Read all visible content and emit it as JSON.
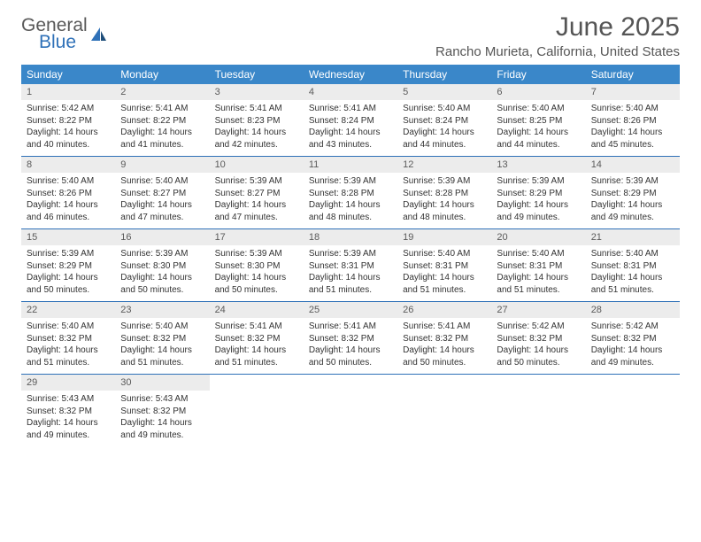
{
  "brand": {
    "name1": "General",
    "name2": "Blue"
  },
  "title": "June 2025",
  "location": "Rancho Murieta, California, United States",
  "colors": {
    "header_bg": "#3a87c9",
    "header_text": "#ffffff",
    "daynum_bg": "#ececec",
    "rule": "#2f71b8",
    "brand_gray": "#595959",
    "brand_blue": "#2f71b8"
  },
  "dayNames": [
    "Sunday",
    "Monday",
    "Tuesday",
    "Wednesday",
    "Thursday",
    "Friday",
    "Saturday"
  ],
  "weeks": [
    [
      {
        "d": "1",
        "sr": "5:42 AM",
        "ss": "8:22 PM",
        "dl": "14 hours and 40 minutes."
      },
      {
        "d": "2",
        "sr": "5:41 AM",
        "ss": "8:22 PM",
        "dl": "14 hours and 41 minutes."
      },
      {
        "d": "3",
        "sr": "5:41 AM",
        "ss": "8:23 PM",
        "dl": "14 hours and 42 minutes."
      },
      {
        "d": "4",
        "sr": "5:41 AM",
        "ss": "8:24 PM",
        "dl": "14 hours and 43 minutes."
      },
      {
        "d": "5",
        "sr": "5:40 AM",
        "ss": "8:24 PM",
        "dl": "14 hours and 44 minutes."
      },
      {
        "d": "6",
        "sr": "5:40 AM",
        "ss": "8:25 PM",
        "dl": "14 hours and 44 minutes."
      },
      {
        "d": "7",
        "sr": "5:40 AM",
        "ss": "8:26 PM",
        "dl": "14 hours and 45 minutes."
      }
    ],
    [
      {
        "d": "8",
        "sr": "5:40 AM",
        "ss": "8:26 PM",
        "dl": "14 hours and 46 minutes."
      },
      {
        "d": "9",
        "sr": "5:40 AM",
        "ss": "8:27 PM",
        "dl": "14 hours and 47 minutes."
      },
      {
        "d": "10",
        "sr": "5:39 AM",
        "ss": "8:27 PM",
        "dl": "14 hours and 47 minutes."
      },
      {
        "d": "11",
        "sr": "5:39 AM",
        "ss": "8:28 PM",
        "dl": "14 hours and 48 minutes."
      },
      {
        "d": "12",
        "sr": "5:39 AM",
        "ss": "8:28 PM",
        "dl": "14 hours and 48 minutes."
      },
      {
        "d": "13",
        "sr": "5:39 AM",
        "ss": "8:29 PM",
        "dl": "14 hours and 49 minutes."
      },
      {
        "d": "14",
        "sr": "5:39 AM",
        "ss": "8:29 PM",
        "dl": "14 hours and 49 minutes."
      }
    ],
    [
      {
        "d": "15",
        "sr": "5:39 AM",
        "ss": "8:29 PM",
        "dl": "14 hours and 50 minutes."
      },
      {
        "d": "16",
        "sr": "5:39 AM",
        "ss": "8:30 PM",
        "dl": "14 hours and 50 minutes."
      },
      {
        "d": "17",
        "sr": "5:39 AM",
        "ss": "8:30 PM",
        "dl": "14 hours and 50 minutes."
      },
      {
        "d": "18",
        "sr": "5:39 AM",
        "ss": "8:31 PM",
        "dl": "14 hours and 51 minutes."
      },
      {
        "d": "19",
        "sr": "5:40 AM",
        "ss": "8:31 PM",
        "dl": "14 hours and 51 minutes."
      },
      {
        "d": "20",
        "sr": "5:40 AM",
        "ss": "8:31 PM",
        "dl": "14 hours and 51 minutes."
      },
      {
        "d": "21",
        "sr": "5:40 AM",
        "ss": "8:31 PM",
        "dl": "14 hours and 51 minutes."
      }
    ],
    [
      {
        "d": "22",
        "sr": "5:40 AM",
        "ss": "8:32 PM",
        "dl": "14 hours and 51 minutes."
      },
      {
        "d": "23",
        "sr": "5:40 AM",
        "ss": "8:32 PM",
        "dl": "14 hours and 51 minutes."
      },
      {
        "d": "24",
        "sr": "5:41 AM",
        "ss": "8:32 PM",
        "dl": "14 hours and 51 minutes."
      },
      {
        "d": "25",
        "sr": "5:41 AM",
        "ss": "8:32 PM",
        "dl": "14 hours and 50 minutes."
      },
      {
        "d": "26",
        "sr": "5:41 AM",
        "ss": "8:32 PM",
        "dl": "14 hours and 50 minutes."
      },
      {
        "d": "27",
        "sr": "5:42 AM",
        "ss": "8:32 PM",
        "dl": "14 hours and 50 minutes."
      },
      {
        "d": "28",
        "sr": "5:42 AM",
        "ss": "8:32 PM",
        "dl": "14 hours and 49 minutes."
      }
    ],
    [
      {
        "d": "29",
        "sr": "5:43 AM",
        "ss": "8:32 PM",
        "dl": "14 hours and 49 minutes."
      },
      {
        "d": "30",
        "sr": "5:43 AM",
        "ss": "8:32 PM",
        "dl": "14 hours and 49 minutes."
      },
      null,
      null,
      null,
      null,
      null
    ]
  ],
  "labels": {
    "sunrise": "Sunrise:",
    "sunset": "Sunset:",
    "daylight": "Daylight:"
  }
}
